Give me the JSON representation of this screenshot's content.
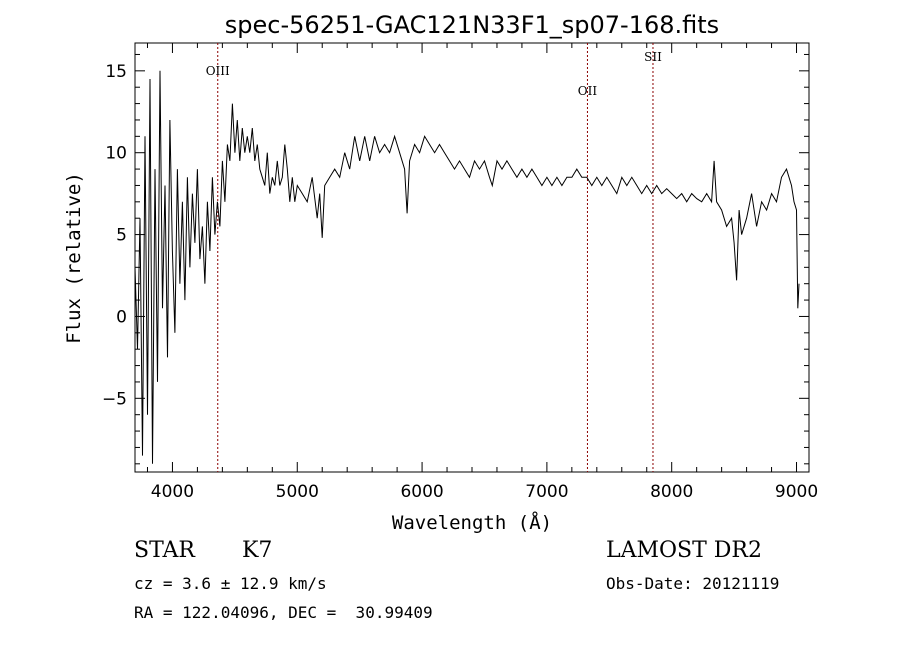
{
  "chart_data": {
    "type": "line",
    "title": "spec-56251-GAC121N33F1_sp07-168.fits",
    "xlabel": "Wavelength (Å)",
    "ylabel": "Flux (relative)",
    "xlim": [
      3700,
      9100
    ],
    "ylim": [
      -9.5,
      16.7
    ],
    "xticks": [
      4000,
      5000,
      6000,
      7000,
      8000,
      9000
    ],
    "yticks": [
      -5,
      0,
      5,
      10,
      15
    ],
    "grid": false,
    "series": [
      {
        "color": "#000000",
        "points": [
          [
            3700,
            3.0
          ],
          [
            3720,
            -2.0
          ],
          [
            3740,
            6.0
          ],
          [
            3760,
            -8.5
          ],
          [
            3780,
            11.0
          ],
          [
            3800,
            -6.0
          ],
          [
            3820,
            14.5
          ],
          [
            3840,
            -9.0
          ],
          [
            3860,
            9.0
          ],
          [
            3880,
            -4.0
          ],
          [
            3900,
            15.0
          ],
          [
            3920,
            0.5
          ],
          [
            3940,
            8.0
          ],
          [
            3960,
            -2.5
          ],
          [
            3980,
            12.0
          ],
          [
            4000,
            4.0
          ],
          [
            4020,
            -1.0
          ],
          [
            4040,
            9.0
          ],
          [
            4060,
            2.0
          ],
          [
            4080,
            7.0
          ],
          [
            4100,
            1.0
          ],
          [
            4120,
            8.5
          ],
          [
            4140,
            3.0
          ],
          [
            4160,
            7.5
          ],
          [
            4180,
            4.5
          ],
          [
            4200,
            9.0
          ],
          [
            4220,
            3.5
          ],
          [
            4240,
            5.5
          ],
          [
            4260,
            2.0
          ],
          [
            4280,
            7.0
          ],
          [
            4300,
            4.0
          ],
          [
            4320,
            8.5
          ],
          [
            4340,
            5.0
          ],
          [
            4360,
            7.0
          ],
          [
            4380,
            5.5
          ],
          [
            4400,
            9.5
          ],
          [
            4420,
            7.0
          ],
          [
            4440,
            10.5
          ],
          [
            4460,
            9.5
          ],
          [
            4480,
            13.0
          ],
          [
            4500,
            10.0
          ],
          [
            4520,
            12.0
          ],
          [
            4540,
            9.5
          ],
          [
            4560,
            11.5
          ],
          [
            4580,
            10.0
          ],
          [
            4600,
            11.0
          ],
          [
            4620,
            10.0
          ],
          [
            4640,
            11.5
          ],
          [
            4660,
            9.5
          ],
          [
            4680,
            10.5
          ],
          [
            4700,
            9.0
          ],
          [
            4720,
            8.5
          ],
          [
            4740,
            8.0
          ],
          [
            4760,
            10.0
          ],
          [
            4780,
            7.5
          ],
          [
            4800,
            8.5
          ],
          [
            4820,
            8.0
          ],
          [
            4840,
            9.5
          ],
          [
            4860,
            8.0
          ],
          [
            4880,
            8.5
          ],
          [
            4900,
            10.5
          ],
          [
            4920,
            9.0
          ],
          [
            4940,
            7.0
          ],
          [
            4960,
            8.5
          ],
          [
            4980,
            7.0
          ],
          [
            5000,
            8.0
          ],
          [
            5040,
            7.5
          ],
          [
            5080,
            7.0
          ],
          [
            5120,
            8.5
          ],
          [
            5160,
            6.0
          ],
          [
            5180,
            7.5
          ],
          [
            5200,
            4.8
          ],
          [
            5220,
            8.0
          ],
          [
            5260,
            8.5
          ],
          [
            5300,
            9.0
          ],
          [
            5340,
            8.5
          ],
          [
            5380,
            10.0
          ],
          [
            5420,
            9.0
          ],
          [
            5460,
            11.0
          ],
          [
            5500,
            9.5
          ],
          [
            5540,
            11.0
          ],
          [
            5580,
            9.5
          ],
          [
            5620,
            11.0
          ],
          [
            5660,
            10.0
          ],
          [
            5700,
            10.5
          ],
          [
            5740,
            10.0
          ],
          [
            5780,
            11.0
          ],
          [
            5820,
            10.0
          ],
          [
            5860,
            9.0
          ],
          [
            5880,
            6.3
          ],
          [
            5900,
            9.5
          ],
          [
            5940,
            10.5
          ],
          [
            5980,
            10.0
          ],
          [
            6020,
            11.0
          ],
          [
            6060,
            10.5
          ],
          [
            6100,
            10.0
          ],
          [
            6140,
            10.5
          ],
          [
            6180,
            10.0
          ],
          [
            6220,
            9.5
          ],
          [
            6260,
            9.0
          ],
          [
            6300,
            9.5
          ],
          [
            6340,
            9.0
          ],
          [
            6380,
            8.5
          ],
          [
            6420,
            9.5
          ],
          [
            6460,
            9.0
          ],
          [
            6500,
            9.5
          ],
          [
            6540,
            8.5
          ],
          [
            6563,
            8.0
          ],
          [
            6600,
            9.5
          ],
          [
            6640,
            9.0
          ],
          [
            6680,
            9.5
          ],
          [
            6720,
            9.0
          ],
          [
            6760,
            8.5
          ],
          [
            6800,
            9.0
          ],
          [
            6840,
            8.5
          ],
          [
            6880,
            9.0
          ],
          [
            6920,
            8.5
          ],
          [
            6960,
            8.0
          ],
          [
            7000,
            8.5
          ],
          [
            7040,
            8.0
          ],
          [
            7080,
            8.5
          ],
          [
            7120,
            8.0
          ],
          [
            7160,
            8.5
          ],
          [
            7200,
            8.5
          ],
          [
            7240,
            9.0
          ],
          [
            7280,
            8.5
          ],
          [
            7320,
            8.5
          ],
          [
            7360,
            8.0
          ],
          [
            7400,
            8.5
          ],
          [
            7440,
            8.0
          ],
          [
            7480,
            8.5
          ],
          [
            7520,
            8.0
          ],
          [
            7560,
            7.5
          ],
          [
            7600,
            8.5
          ],
          [
            7640,
            8.0
          ],
          [
            7680,
            8.5
          ],
          [
            7720,
            8.0
          ],
          [
            7760,
            7.5
          ],
          [
            7800,
            8.0
          ],
          [
            7840,
            7.5
          ],
          [
            7880,
            8.0
          ],
          [
            7920,
            7.5
          ],
          [
            7960,
            7.8
          ],
          [
            8000,
            7.5
          ],
          [
            8040,
            7.2
          ],
          [
            8080,
            7.5
          ],
          [
            8120,
            7.0
          ],
          [
            8160,
            7.5
          ],
          [
            8200,
            7.2
          ],
          [
            8240,
            7.0
          ],
          [
            8280,
            7.5
          ],
          [
            8320,
            7.0
          ],
          [
            8340,
            9.5
          ],
          [
            8360,
            7.0
          ],
          [
            8400,
            6.5
          ],
          [
            8440,
            5.5
          ],
          [
            8480,
            6.0
          ],
          [
            8500,
            4.5
          ],
          [
            8520,
            2.2
          ],
          [
            8540,
            6.5
          ],
          [
            8560,
            5.0
          ],
          [
            8600,
            6.0
          ],
          [
            8640,
            7.5
          ],
          [
            8680,
            5.5
          ],
          [
            8720,
            7.0
          ],
          [
            8760,
            6.5
          ],
          [
            8800,
            7.5
          ],
          [
            8840,
            7.0
          ],
          [
            8880,
            8.5
          ],
          [
            8920,
            9.0
          ],
          [
            8960,
            8.0
          ],
          [
            8980,
            7.0
          ],
          [
            9000,
            6.5
          ],
          [
            9010,
            0.5
          ],
          [
            9020,
            2.0
          ]
        ]
      }
    ],
    "lines": [
      {
        "label": "OIII",
        "x": 4363
      },
      {
        "label": "OII",
        "x": 7325
      },
      {
        "label": "SII",
        "x": 7850
      }
    ]
  },
  "footer": {
    "class_label": "STAR",
    "subclass": "K7",
    "survey": "LAMOST DR2",
    "cz": "cz = 3.6 ± 12.9 km/s",
    "obs_date": "Obs-Date: 20121119",
    "radec": "RA = 122.04096, DEC =  30.99409"
  },
  "colors": {
    "spectrum": "#000000",
    "line_marker": "#8b0000",
    "axis": "#000000"
  }
}
